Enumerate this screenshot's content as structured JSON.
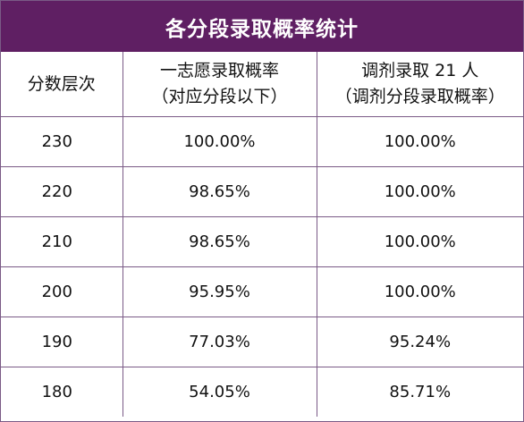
{
  "title": "各分段录取概率统计",
  "headers": {
    "col1": "分数层次",
    "col2_line1": "一志愿录取概率",
    "col2_line2": "（对应分段以下）",
    "col3_line1": "调剂录取 21 人",
    "col3_line2": "（调剂分段录取概率）"
  },
  "rows": [
    {
      "score": "230",
      "first_choice": "100.00%",
      "adjust": "100.00%"
    },
    {
      "score": "220",
      "first_choice": "98.65%",
      "adjust": "100.00%"
    },
    {
      "score": "210",
      "first_choice": "98.65%",
      "adjust": "100.00%"
    },
    {
      "score": "200",
      "first_choice": "95.95%",
      "adjust": "100.00%"
    },
    {
      "score": "190",
      "first_choice": "77.03%",
      "adjust": "95.24%"
    },
    {
      "score": "180",
      "first_choice": "54.05%",
      "adjust": "85.71%"
    }
  ],
  "colors": {
    "header_bg": "#5f1f63",
    "border": "#7a5a86"
  }
}
